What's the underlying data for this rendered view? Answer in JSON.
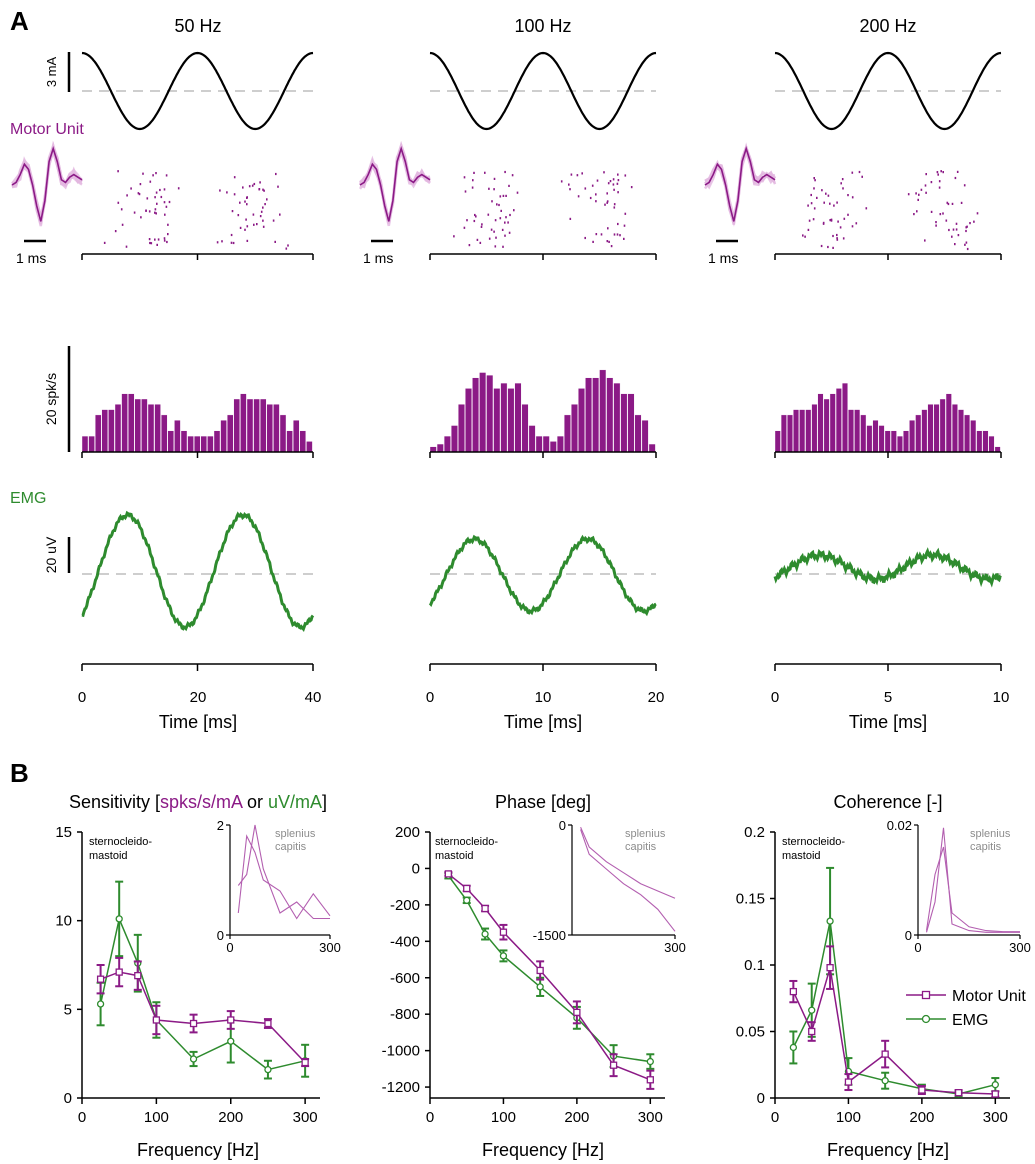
{
  "colors": {
    "motor_unit": "#8b1a86",
    "motor_unit_light": "#e2b7e0",
    "emg": "#2e8b2e",
    "axis": "#000000",
    "dashed": "#bdbdbd",
    "inset": "#b35fb0",
    "inset_text": "#8c8c8c"
  },
  "panel_labels": {
    "a": "A",
    "b": "B"
  },
  "panel_a": {
    "frequency_titles": [
      "50 Hz",
      "100 Hz",
      "200 Hz"
    ],
    "stim_scale_label": "3 mA",
    "motor_unit_label": "Motor Unit",
    "waveform_scale_label": "1 ms",
    "rate_scale_label": "20 spk/s",
    "emg_label": "EMG",
    "emg_scale_label": "20 uV",
    "xlabel": "Time [ms]",
    "x_ticks": [
      [
        "0",
        "20",
        "40"
      ],
      [
        "0",
        "10",
        "20"
      ],
      [
        "0",
        "5",
        "10"
      ]
    ]
  },
  "chart_data": [
    {
      "id": "psth_50hz",
      "type": "bar",
      "title": "50 Hz",
      "xlabel": "Time [ms]",
      "ylabel": "20 spk/s",
      "xlim": [
        0,
        40
      ],
      "values": [
        3,
        3,
        7,
        8,
        8,
        9,
        11,
        11,
        10,
        10,
        9,
        9,
        7,
        4,
        6,
        4,
        3,
        3,
        3,
        3,
        4,
        6,
        7,
        10,
        11,
        10,
        10,
        10,
        9,
        9,
        7,
        4,
        6,
        4,
        2
      ]
    },
    {
      "id": "psth_100hz",
      "type": "bar",
      "title": "100 Hz",
      "xlabel": "Time [ms]",
      "xlim": [
        0,
        20
      ],
      "values": [
        1,
        1.5,
        3,
        5,
        9,
        12,
        14,
        15,
        14.5,
        12,
        13,
        12,
        13,
        9,
        5,
        3,
        3,
        2,
        3,
        7,
        9,
        12,
        14,
        14,
        15.5,
        14,
        13,
        11,
        11,
        7,
        6,
        1.5
      ]
    },
    {
      "id": "psth_200hz",
      "type": "bar",
      "title": "200 Hz",
      "xlabel": "Time [ms]",
      "xlim": [
        0,
        10
      ],
      "values": [
        4,
        7,
        7,
        8,
        8,
        8,
        9,
        11,
        10,
        11,
        12,
        13,
        8,
        8,
        7,
        5,
        6,
        5,
        4,
        4,
        3,
        4,
        6,
        7,
        8,
        9,
        9,
        10,
        11,
        9,
        8,
        7,
        6,
        4,
        4,
        3,
        1
      ]
    },
    {
      "id": "sensitivity",
      "type": "line",
      "title": "Sensitivity [spks/s/mA or uV/mA]",
      "xlabel": "Frequency [Hz]",
      "xlim": [
        0,
        320
      ],
      "ylim": [
        0,
        15
      ],
      "x_ticks": [
        "0",
        "100",
        "200",
        "300"
      ],
      "y_ticks": [
        "0",
        "5",
        "10",
        "15"
      ],
      "title_parts": [
        "Sensitivity [",
        "spks/s/mA",
        " or ",
        "uV/mA",
        "]"
      ],
      "annotation": [
        "sternocleido-",
        "mastoid"
      ],
      "series": [
        {
          "name": "Motor Unit",
          "marker": "square",
          "x": [
            25,
            50,
            75,
            100,
            150,
            200,
            250,
            300
          ],
          "y": [
            6.7,
            7.1,
            6.9,
            4.4,
            4.2,
            4.4,
            4.2,
            2.0
          ],
          "err": [
            0.8,
            0.8,
            0.8,
            0.8,
            0.5,
            0.5,
            0.25,
            0.2
          ]
        },
        {
          "name": "EMG",
          "marker": "circle",
          "x": [
            25,
            50,
            75,
            100,
            150,
            200,
            250,
            300
          ],
          "y": [
            5.3,
            10.1,
            7.6,
            4.4,
            2.2,
            3.2,
            1.6,
            2.1
          ],
          "err": [
            1.2,
            2.1,
            1.6,
            1.0,
            0.4,
            1.2,
            0.5,
            0.9
          ]
        }
      ],
      "inset": {
        "label": [
          "splenius",
          "capitis"
        ],
        "xlim": [
          0,
          300
        ],
        "ylim": [
          0,
          2
        ],
        "x_ticks": [
          "0",
          "300"
        ],
        "y_ticks": [
          "0",
          "2"
        ],
        "series": [
          {
            "x": [
              25,
              50,
              75,
              100,
              150,
              200,
              250,
              300
            ],
            "y": [
              0.4,
              1.8,
              1.5,
              1.0,
              0.8,
              0.3,
              0.75,
              0.35
            ]
          },
          {
            "x": [
              25,
              50,
              75,
              100,
              150,
              200,
              250,
              300
            ],
            "y": [
              0.9,
              1.1,
              2.0,
              1.2,
              0.4,
              0.6,
              0.3,
              0.3
            ]
          }
        ]
      }
    },
    {
      "id": "phase",
      "type": "line",
      "title": "Phase [deg]",
      "xlabel": "Frequency [Hz]",
      "xlim": [
        0,
        320
      ],
      "ylim": [
        -1260,
        200
      ],
      "x_ticks": [
        "0",
        "100",
        "200",
        "300"
      ],
      "y_ticks": [
        "200",
        "0",
        "-200",
        "-400",
        "-600",
        "-800",
        "-1000",
        "-1200"
      ],
      "annotation": [
        "sternocleido-",
        "mastoid"
      ],
      "series": [
        {
          "name": "Motor Unit",
          "marker": "square",
          "x": [
            25,
            50,
            75,
            100,
            150,
            200,
            250,
            300
          ],
          "y": [
            -30,
            -110,
            -220,
            -350,
            -560,
            -790,
            -1080,
            -1160
          ],
          "err": [
            10,
            15,
            15,
            40,
            50,
            60,
            60,
            50
          ]
        },
        {
          "name": "EMG",
          "marker": "circle",
          "x": [
            25,
            50,
            75,
            100,
            150,
            200,
            250,
            300
          ],
          "y": [
            -40,
            -175,
            -360,
            -480,
            -650,
            -820,
            -1030,
            -1060
          ],
          "err": [
            15,
            15,
            30,
            30,
            50,
            60,
            60,
            40
          ]
        }
      ],
      "inset": {
        "label": [
          "splenius",
          "capitis"
        ],
        "xlim": [
          0,
          300
        ],
        "ylim": [
          -1500,
          0
        ],
        "x_ticks": [
          "300"
        ],
        "y_ticks": [
          "0",
          "-1500"
        ],
        "series": [
          {
            "x": [
              25,
              50,
              100,
              150,
              200,
              250,
              300
            ],
            "y": [
              -30,
              -300,
              -500,
              -650,
              -800,
              -900,
              -1000
            ]
          },
          {
            "x": [
              25,
              50,
              100,
              150,
              200,
              250,
              300
            ],
            "y": [
              -60,
              -400,
              -600,
              -800,
              -950,
              -1150,
              -1450
            ]
          }
        ]
      }
    },
    {
      "id": "coherence",
      "type": "line",
      "title": "Coherence [-]",
      "xlabel": "Frequency [Hz]",
      "xlim": [
        0,
        320
      ],
      "ylim": [
        0,
        0.2
      ],
      "x_ticks": [
        "0",
        "100",
        "200",
        "300"
      ],
      "y_ticks": [
        "0",
        "0.05",
        "0.1",
        "0.15",
        "0.2"
      ],
      "annotation": [
        "sternocleido-",
        "mastoid"
      ],
      "series": [
        {
          "name": "Motor Unit",
          "marker": "square",
          "x": [
            25,
            50,
            75,
            100,
            150,
            200,
            250,
            300
          ],
          "y": [
            0.08,
            0.05,
            0.098,
            0.012,
            0.033,
            0.006,
            0.004,
            0.003
          ],
          "err": [
            0.008,
            0.007,
            0.016,
            0.006,
            0.01,
            0.003,
            0.002,
            0.002
          ]
        },
        {
          "name": "EMG",
          "marker": "circle",
          "x": [
            25,
            50,
            75,
            100,
            150,
            200,
            250,
            300
          ],
          "y": [
            0.038,
            0.066,
            0.133,
            0.02,
            0.013,
            0.007,
            0.003,
            0.01
          ],
          "err": [
            0.012,
            0.02,
            0.04,
            0.01,
            0.006,
            0.003,
            0.002,
            0.005
          ]
        }
      ],
      "inset": {
        "label": [
          "splenius",
          "capitis"
        ],
        "xlim": [
          0,
          300
        ],
        "ylim": [
          0,
          0.02
        ],
        "x_ticks": [
          "0",
          "300"
        ],
        "y_ticks": [
          "0.02",
          "0"
        ],
        "series": [
          {
            "x": [
              25,
              50,
              75,
              100,
              150,
              200,
              250,
              300
            ],
            "y": [
              0.0005,
              0.006,
              0.0195,
              0.002,
              0.0008,
              0.0005,
              0.0005,
              0.0005
            ]
          },
          {
            "x": [
              25,
              50,
              75,
              100,
              150,
              200,
              250,
              300
            ],
            "y": [
              0.0008,
              0.011,
              0.016,
              0.004,
              0.0015,
              0.0008,
              0.0006,
              0.0006
            ]
          }
        ]
      },
      "legend": {
        "position": "right",
        "entries": [
          "Motor Unit",
          "EMG"
        ]
      }
    }
  ]
}
